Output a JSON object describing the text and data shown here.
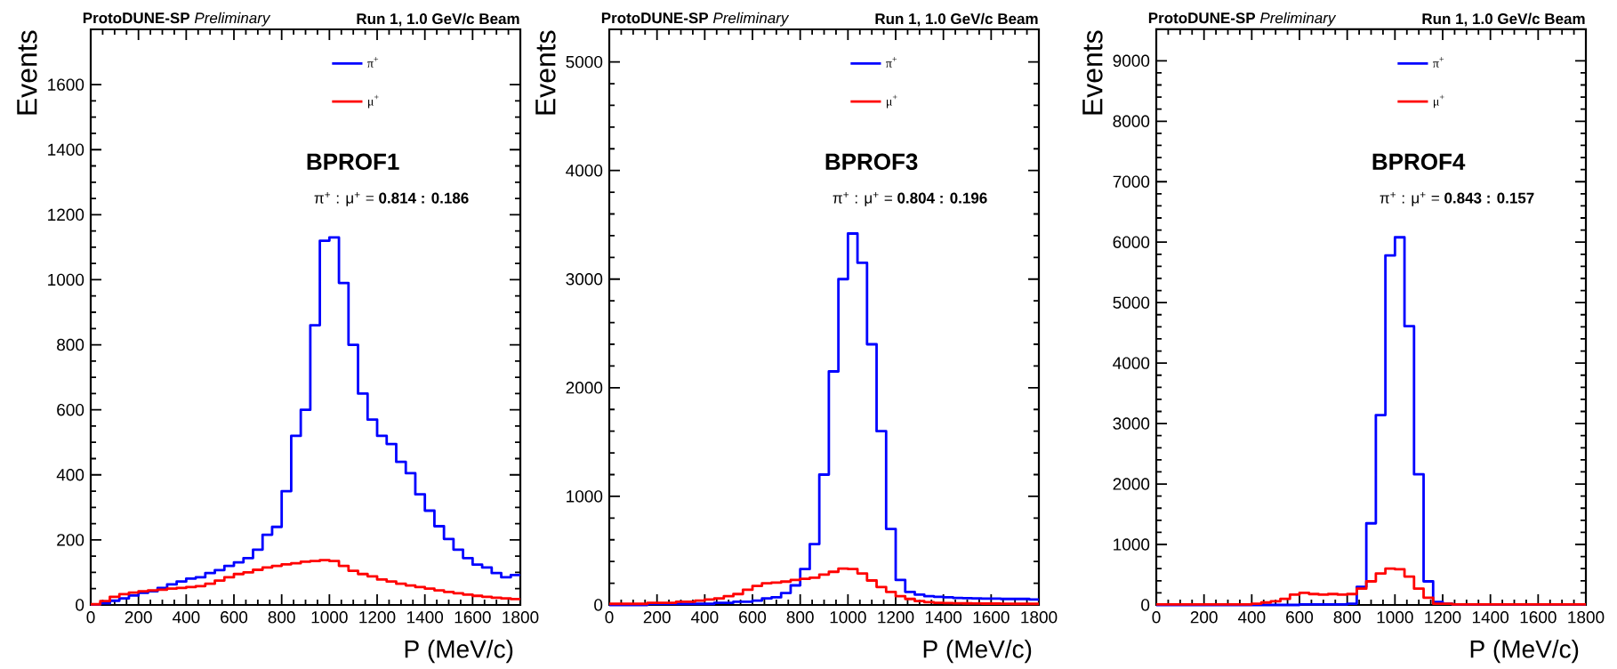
{
  "chart_data": [
    {
      "type": "histogram",
      "title": "BPROF1",
      "xlabel": "P (MeV/c)",
      "ylabel": "Events",
      "annotations": [
        "**ProtoDUNE-SP** *Preliminary*",
        "Run 1, 1.0 GeV/c Beam",
        "π$^{+}$ : μ$^{+}$ = **0.814 : 0.186**"
      ],
      "bins": [
        0,
        40,
        80,
        120,
        160,
        200,
        240,
        280,
        320,
        360,
        400,
        440,
        480,
        520,
        560,
        600,
        640,
        680,
        720,
        760,
        800,
        840,
        880,
        920,
        960,
        1000,
        1040,
        1080,
        1120,
        1160,
        1200,
        1240,
        1280,
        1320,
        1360,
        1400,
        1440,
        1480,
        1520,
        1560,
        1600,
        1640,
        1680,
        1720,
        1760,
        1800
      ],
      "series": [
        {
          "name": "π$^{+}$",
          "color": "#0000ff",
          "values": [
            1,
            5,
            13,
            20,
            29,
            37,
            42,
            52,
            63,
            72,
            81,
            85,
            98,
            107,
            120,
            131,
            144,
            170,
            216,
            240,
            350,
            520,
            600,
            860,
            1120,
            1130,
            990,
            800,
            650,
            570,
            520,
            495,
            440,
            405,
            340,
            290,
            242,
            203,
            170,
            144,
            124,
            115,
            98,
            85,
            92
          ]
        },
        {
          "name": "μ$^{+}$",
          "color": "#ff0000",
          "values": [
            2,
            12,
            25,
            33,
            38,
            42,
            45,
            47,
            50,
            52,
            55,
            58,
            65,
            75,
            85,
            95,
            100,
            108,
            115,
            120,
            125,
            128,
            133,
            135,
            138,
            135,
            120,
            105,
            95,
            88,
            78,
            72,
            65,
            60,
            55,
            50,
            45,
            40,
            36,
            32,
            28,
            25,
            22,
            20,
            18
          ]
        }
      ],
      "xlim": [
        0,
        1800
      ],
      "ylim": [
        0,
        1770
      ],
      "xticks": [
        0,
        200,
        400,
        600,
        800,
        1000,
        1200,
        1400,
        1600,
        1800
      ],
      "yticks": [
        0,
        200,
        400,
        600,
        800,
        1000,
        1200,
        1400,
        1600
      ],
      "legend": "top"
    },
    {
      "type": "histogram",
      "title": "BPROF3",
      "xlabel": "P (MeV/c)",
      "ylabel": "Events",
      "annotations": [
        "**ProtoDUNE-SP** *Preliminary*",
        "Run 1, 1.0 GeV/c Beam",
        "π$^{+}$ : μ$^{+}$ = **0.804 : 0.196**"
      ],
      "bins": [
        0,
        40,
        80,
        120,
        160,
        200,
        240,
        280,
        320,
        360,
        400,
        440,
        480,
        520,
        560,
        600,
        640,
        680,
        720,
        760,
        800,
        840,
        880,
        920,
        960,
        1000,
        1040,
        1080,
        1120,
        1160,
        1200,
        1240,
        1280,
        1320,
        1360,
        1400,
        1440,
        1480,
        1520,
        1560,
        1600,
        1640,
        1680,
        1720,
        1760,
        1800
      ],
      "series": [
        {
          "name": "π$^{+}$",
          "color": "#0000ff",
          "values": [
            0,
            0,
            0,
            0,
            10,
            10,
            10,
            10,
            10,
            10,
            10,
            20,
            20,
            30,
            30,
            40,
            60,
            70,
            110,
            180,
            330,
            560,
            1200,
            2150,
            3000,
            3420,
            3150,
            2400,
            1600,
            700,
            230,
            120,
            95,
            80,
            75,
            70,
            65,
            62,
            60,
            58,
            58,
            55,
            55,
            55,
            50
          ]
        },
        {
          "name": "μ$^{+}$",
          "color": "#ff0000",
          "values": [
            10,
            10,
            10,
            10,
            20,
            20,
            20,
            30,
            30,
            40,
            50,
            60,
            80,
            100,
            140,
            175,
            200,
            205,
            215,
            230,
            240,
            250,
            280,
            305,
            335,
            330,
            290,
            225,
            165,
            120,
            80,
            55,
            35,
            25,
            20,
            18,
            15,
            14,
            13,
            12,
            12,
            11,
            10,
            10,
            10
          ]
        }
      ],
      "xlim": [
        0,
        1800
      ],
      "ylim": [
        0,
        5300
      ],
      "xticks": [
        0,
        200,
        400,
        600,
        800,
        1000,
        1200,
        1400,
        1600,
        1800
      ],
      "yticks": [
        0,
        1000,
        2000,
        3000,
        4000,
        5000
      ],
      "legend": "top"
    },
    {
      "type": "histogram",
      "title": "BPROF4",
      "xlabel": "P (MeV/c)",
      "ylabel": "Events",
      "annotations": [
        "**ProtoDUNE-SP** *Preliminary*",
        "Run 1, 1.0 GeV/c Beam",
        "π$^{+}$ : μ$^{+}$ = **0.843 : 0.157**"
      ],
      "bins": [
        0,
        40,
        80,
        120,
        160,
        200,
        240,
        280,
        320,
        360,
        400,
        440,
        480,
        520,
        560,
        600,
        640,
        680,
        720,
        760,
        800,
        840,
        880,
        920,
        960,
        1000,
        1040,
        1080,
        1120,
        1160,
        1200,
        1240,
        1280,
        1320,
        1360,
        1400,
        1440,
        1480,
        1520,
        1560,
        1600,
        1640,
        1680,
        1720,
        1760,
        1800
      ],
      "series": [
        {
          "name": "π$^{+}$",
          "color": "#0000ff",
          "values": [
            0,
            0,
            0,
            0,
            0,
            0,
            0,
            0,
            0,
            0,
            0,
            0,
            0,
            0,
            0,
            10,
            10,
            10,
            10,
            10,
            20,
            300,
            1350,
            3140,
            5780,
            6080,
            4610,
            2160,
            390,
            50,
            20,
            10,
            10,
            10,
            10,
            10,
            10,
            10,
            10,
            10,
            10,
            10,
            10,
            10,
            10
          ]
        },
        {
          "name": "μ$^{+}$",
          "color": "#ff0000",
          "values": [
            10,
            10,
            10,
            10,
            10,
            10,
            10,
            10,
            10,
            10,
            20,
            40,
            60,
            100,
            170,
            200,
            180,
            170,
            180,
            170,
            180,
            270,
            390,
            520,
            600,
            590,
            470,
            270,
            120,
            20,
            20,
            10,
            10,
            10,
            10,
            10,
            10,
            10,
            10,
            10,
            10,
            10,
            10,
            10,
            10
          ]
        }
      ],
      "xlim": [
        0,
        1800
      ],
      "ylim": [
        0,
        9520
      ],
      "xticks": [
        0,
        200,
        400,
        600,
        800,
        1000,
        1200,
        1400,
        1600,
        1800
      ],
      "yticks": [
        0,
        1000,
        2000,
        3000,
        4000,
        5000,
        6000,
        7000,
        8000,
        9000
      ],
      "legend": "top"
    }
  ]
}
